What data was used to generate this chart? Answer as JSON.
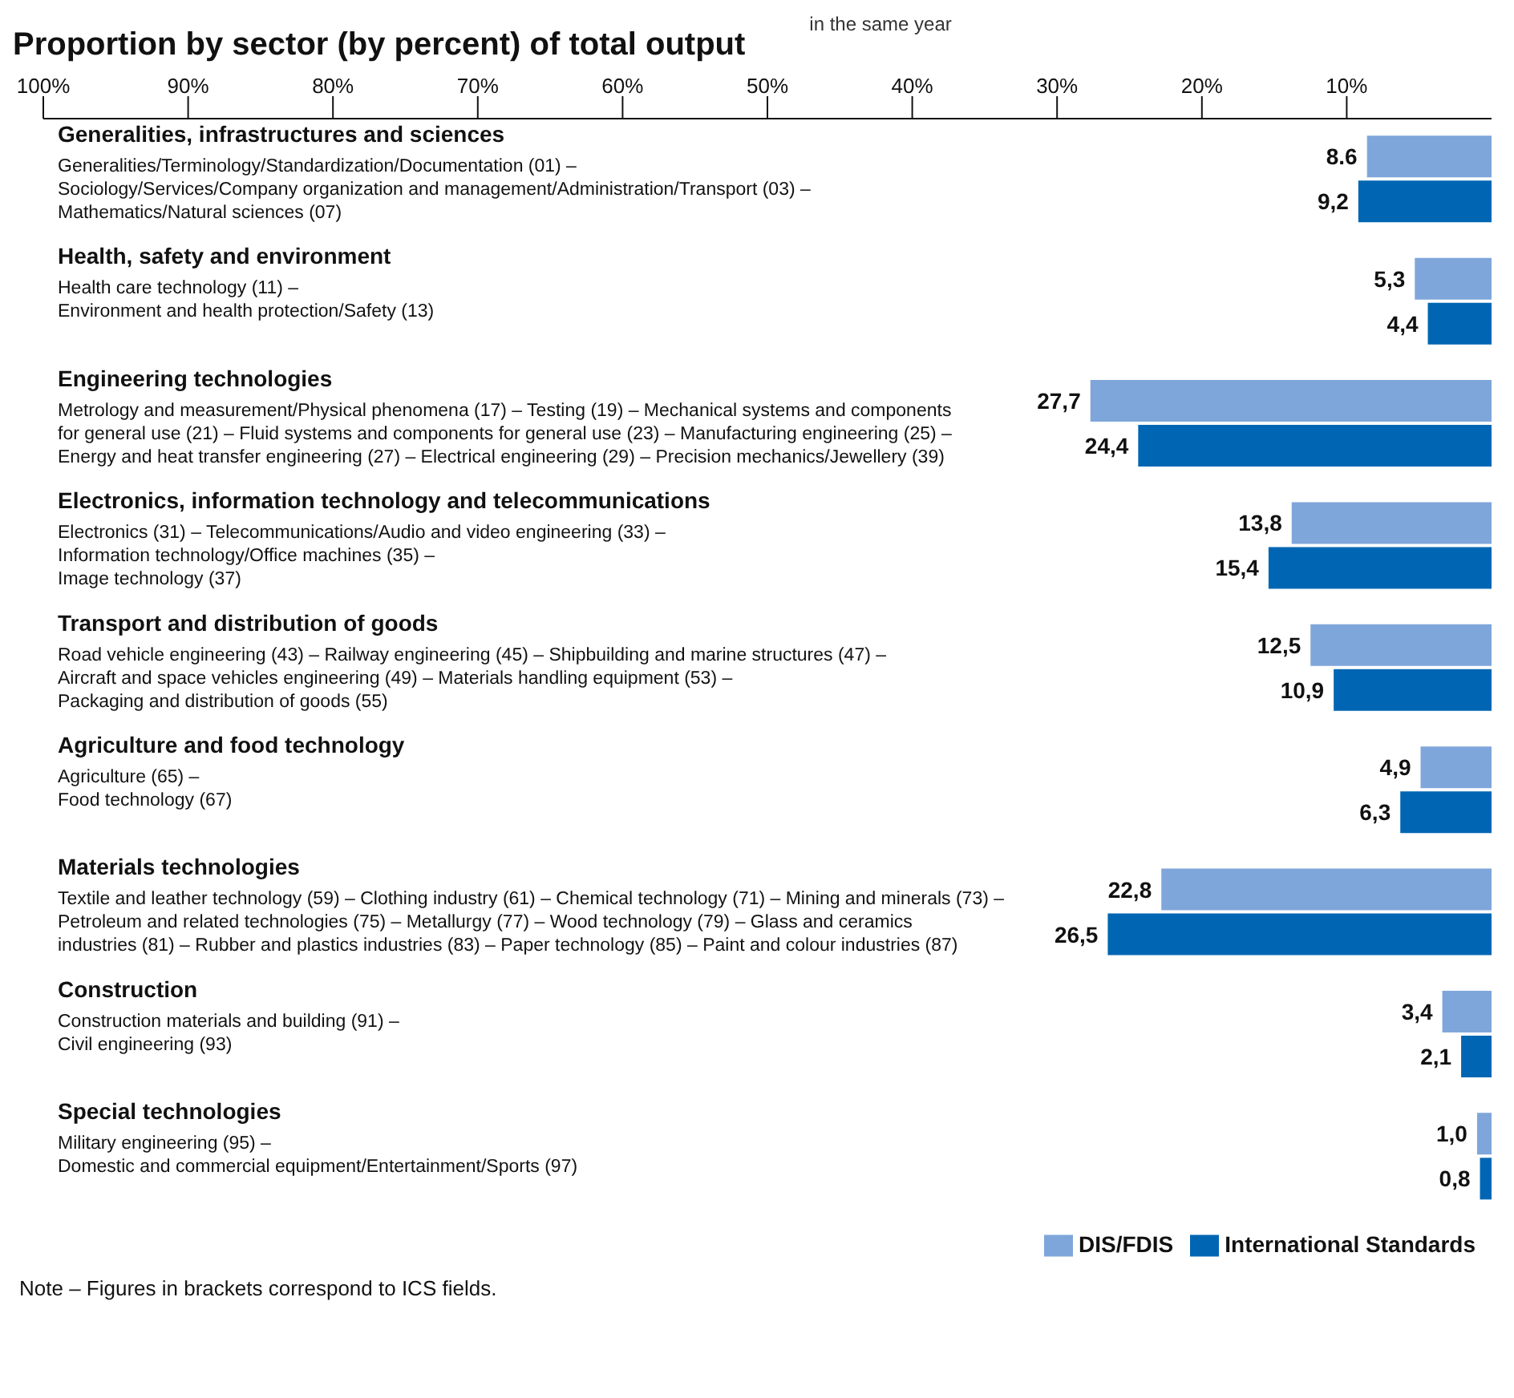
{
  "chart_data": {
    "type": "bar",
    "orientation": "horizontal",
    "title": "Proportion by sector (by percent) of total output",
    "annotations": [
      "in the same year",
      "Note – Figures in brackets correspond to ICS fields."
    ],
    "categories": [
      "Generalities, infrastructures and sciences\nGeneralities/Terminology/Standardization/Documentation (01) –\nSociology/Services/Company organization and management/Administration/Transport (03) –\nMathematics/Natural sciences (07)",
      "Health, safety and environment\nHealth care technology (11) –\nEnvironment and health protection/Safety (13)",
      "Engineering technologies\nMetrology and measurement/Physical phenomena (17) – Testing (19) – Mechanical systems and components\nfor general use (21) – Fluid systems and components for general use (23) – Manufacturing engineering (25) –\nEnergy and heat transfer engineering (27) – Electrical engineering (29) – Precision mechanics/Jewellery (39)",
      "Electronics, information technology and telecommunications\nElectronics (31) – Telecommunications/Audio and video engineering (33) –\nInformation technology/Office machines (35) –\nImage technology (37)",
      "Transport and distribution of goods\nRoad vehicle engineering (43) – Railway engineering (45) – Shipbuilding and marine structures (47) –\nAircraft and space vehicles engineering (49) – Materials handling equipment (53) –\nPackaging and distribution of goods (55)",
      "Agriculture and food technology\nAgriculture (65) –\nFood technology (67)",
      "Materials technologies\nTextile and leather technology (59) – Clothing industry (61) – Chemical technology (71) – Mining and minerals (73) –\nPetroleum and related technologies (75) – Metallurgy (77) – Wood technology (79) – Glass and ceramics\nindustries (81) – Rubber and plastics industries (83) – Paper technology (85) – Paint and colour industries (87)",
      "Construction\nConstruction materials and building (91) –\nCivil engineering (93)",
      "Special technologies\nMilitary engineering (95) –\nDomestic and commercial equipment/Entertainment/Sports (97)"
    ],
    "series": [
      {
        "name": "DIS/FDIS",
        "color": "#7fa6da",
        "values": [
          8.6,
          5.3,
          27.7,
          13.8,
          12.5,
          4.9,
          22.8,
          3.4,
          1.0
        ],
        "value_labels": [
          "8.6",
          "5,3",
          "27,7",
          "13,8",
          "12,5",
          "4,9",
          "22,8",
          "3,4",
          "1,0"
        ]
      },
      {
        "name": "International Standards",
        "color": "#0066b3",
        "values": [
          9.2,
          4.4,
          24.4,
          15.4,
          10.9,
          6.3,
          26.5,
          2.1,
          0.8
        ],
        "value_labels": [
          "9,2",
          "4,4",
          "24,4",
          "15,4",
          "10,9",
          "6,3",
          "26,5",
          "2,1",
          "0,8"
        ]
      }
    ],
    "xlim": [
      100,
      0
    ],
    "xticks": [
      {
        "value": 100,
        "label": "100%"
      },
      {
        "value": 90,
        "label": "90%"
      },
      {
        "value": 80,
        "label": "80%"
      },
      {
        "value": 70,
        "label": "70%"
      },
      {
        "value": 60,
        "label": "60%"
      },
      {
        "value": 50,
        "label": "50%"
      },
      {
        "value": 40,
        "label": "40%"
      },
      {
        "value": 30,
        "label": "30%"
      },
      {
        "value": 20,
        "label": "20%"
      },
      {
        "value": 10,
        "label": "10%"
      }
    ],
    "legend": "bottom right",
    "grid": false
  }
}
